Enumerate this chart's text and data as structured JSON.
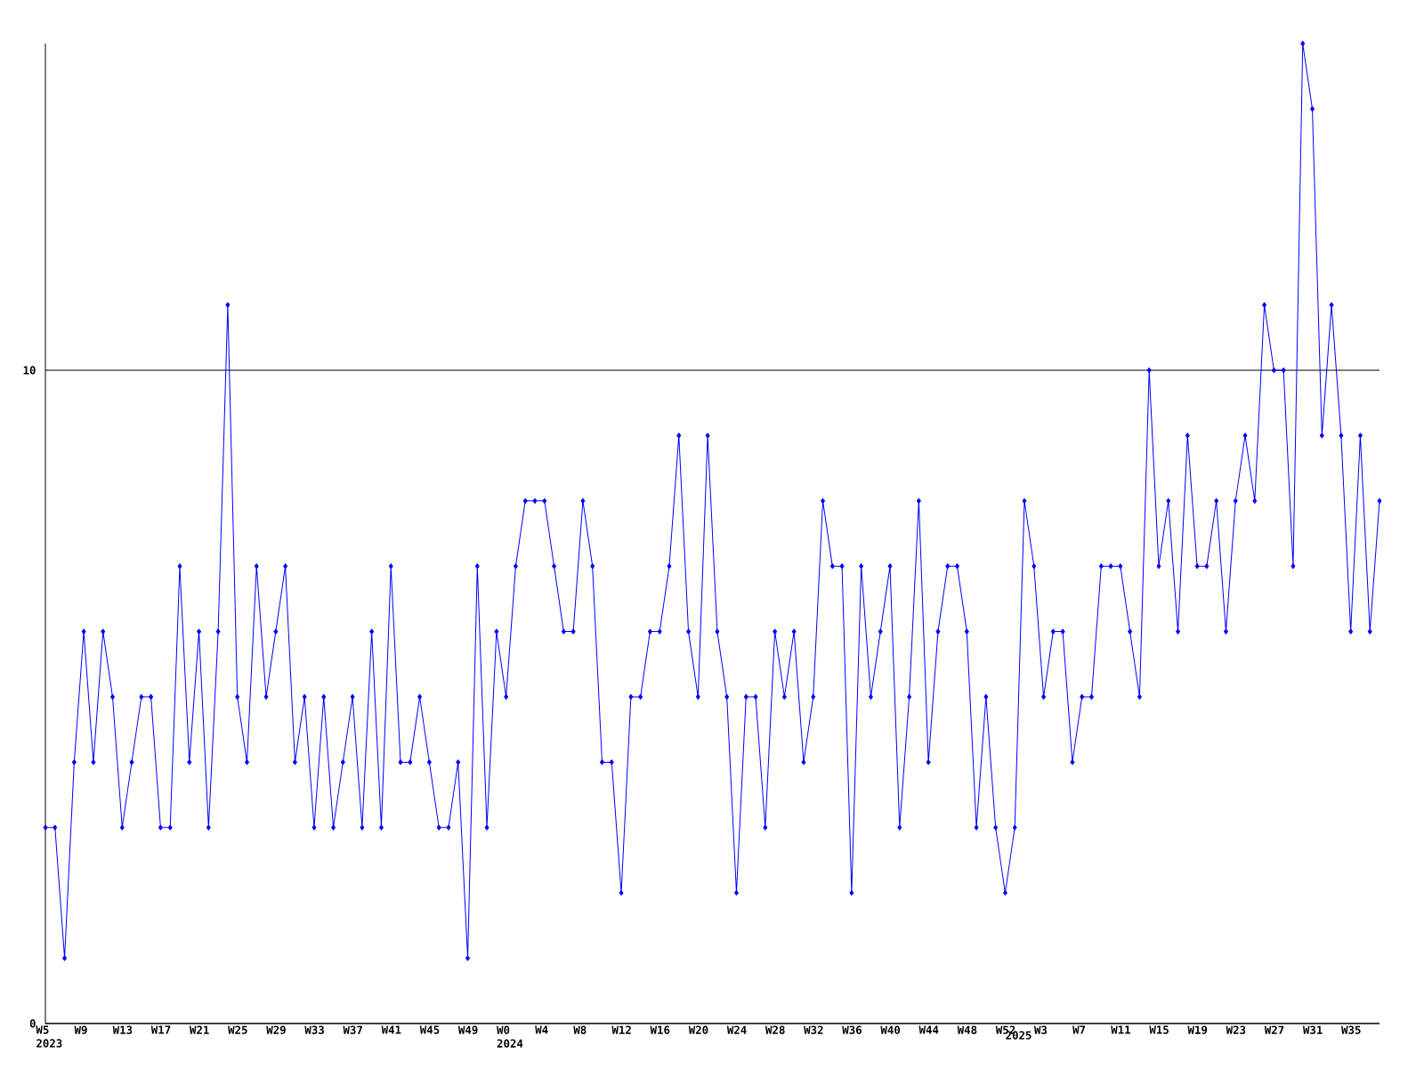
{
  "chart_data": {
    "type": "line",
    "color": "#0000ff",
    "marker": "diamond",
    "line_style": "solid",
    "grid": "y",
    "categories": [
      "W5 2023",
      null,
      null,
      null,
      "W9",
      null,
      null,
      null,
      "W13",
      null,
      null,
      null,
      "W17",
      null,
      null,
      null,
      "W21",
      null,
      null,
      null,
      "W25",
      null,
      null,
      null,
      "W29",
      null,
      null,
      null,
      "W33",
      null,
      null,
      null,
      "W37",
      null,
      null,
      null,
      "W41",
      null,
      null,
      null,
      "W45",
      null,
      null,
      null,
      "W49",
      null,
      null,
      null,
      "W0 2024",
      null,
      null,
      null,
      "W4",
      null,
      null,
      null,
      "W8",
      null,
      null,
      null,
      "W12",
      null,
      null,
      null,
      "W16",
      null,
      null,
      null,
      "W20",
      null,
      null,
      null,
      "W24",
      null,
      null,
      null,
      "W28",
      null,
      null,
      null,
      "W32",
      null,
      null,
      null,
      "W36",
      null,
      null,
      null,
      "W40",
      null,
      null,
      null,
      "W44",
      null,
      null,
      null,
      "W48",
      null,
      null,
      null,
      "W52",
      "2025",
      null,
      null,
      "W3",
      null,
      null,
      null,
      "W7",
      null,
      null,
      null,
      "W11",
      null,
      null,
      null,
      "W15",
      null,
      null,
      null,
      "W19",
      null,
      null,
      null,
      "W23",
      null,
      null,
      null,
      "W27",
      null,
      null,
      null,
      "W31",
      null,
      null,
      null,
      "W35",
      null,
      null,
      null
    ],
    "values": [
      3,
      3,
      1,
      4,
      6,
      4,
      6,
      5,
      3,
      4,
      5,
      5,
      3,
      3,
      7,
      4,
      6,
      3,
      6,
      11,
      5,
      4,
      7,
      5,
      6,
      7,
      4,
      5,
      3,
      5,
      3,
      4,
      5,
      3,
      6,
      3,
      7,
      4,
      4,
      5,
      4,
      3,
      3,
      4,
      1,
      7,
      3,
      6,
      5,
      7,
      8,
      8,
      8,
      7,
      6,
      6,
      8,
      7,
      4,
      4,
      2,
      5,
      5,
      6,
      6,
      7,
      9,
      6,
      5,
      9,
      6,
      5,
      2,
      5,
      5,
      3,
      6,
      5,
      6,
      4,
      5,
      8,
      7,
      7,
      2,
      7,
      5,
      6,
      7,
      3,
      5,
      8,
      4,
      6,
      7,
      7,
      6,
      3,
      5,
      3,
      2,
      3,
      8,
      7,
      5,
      6,
      6,
      4,
      5,
      5,
      7,
      7,
      7,
      6,
      5,
      10,
      7,
      8,
      6,
      9,
      7,
      7,
      8,
      6,
      8,
      9,
      8,
      11,
      10,
      10,
      7,
      15,
      14,
      9,
      11,
      9,
      6,
      9,
      6,
      8
    ],
    "ylim": [
      0,
      15
    ],
    "yticks": [
      0,
      10
    ]
  }
}
